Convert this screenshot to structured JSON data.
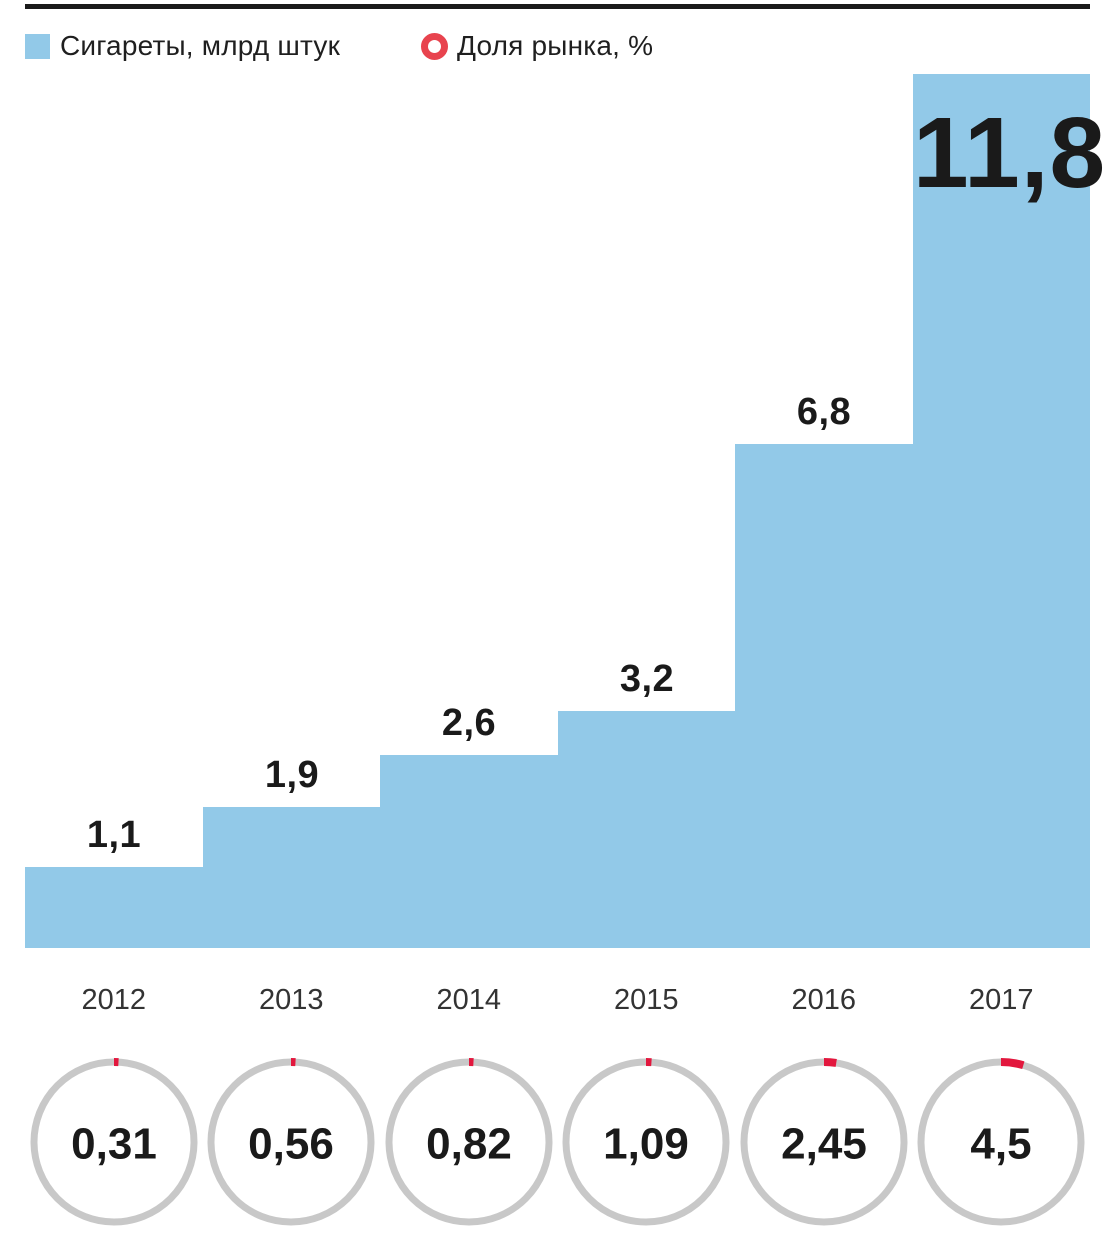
{
  "legend": {
    "bars_label": "Сигареты, млрд штук",
    "share_label": "Доля рынка, %"
  },
  "colors": {
    "bar_blue": "#92c9e8",
    "legend_red": "#e8434e",
    "arc_red": "#e2173d",
    "ring_gray": "#c8c8c8",
    "text_dark": "#1a1a1a"
  },
  "chart_data": {
    "type": "bar",
    "categories": [
      "2012",
      "2013",
      "2014",
      "2015",
      "2016",
      "2017"
    ],
    "series": [
      {
        "name": "Сигареты, млрд штук",
        "values": [
          1.1,
          1.9,
          2.6,
          3.2,
          6.8,
          11.8
        ],
        "labels": [
          "1,1",
          "1,9",
          "2,6",
          "3,2",
          "6,8",
          "11,8"
        ]
      },
      {
        "name": "Доля рынка, %",
        "values": [
          0.31,
          0.56,
          0.82,
          1.09,
          2.45,
          4.5
        ],
        "labels": [
          "0,31",
          "0,56",
          "0,82",
          "1,09",
          "2,45",
          "4,5"
        ]
      }
    ],
    "ylim": [
      0,
      11.8
    ],
    "grid": false,
    "legend_position": "top",
    "notes": "Step-style contiguous bar chart; market share shown as gray donut rings with red arc proportional to percent, value printed inside each ring; last bar value label printed inside the bar."
  }
}
